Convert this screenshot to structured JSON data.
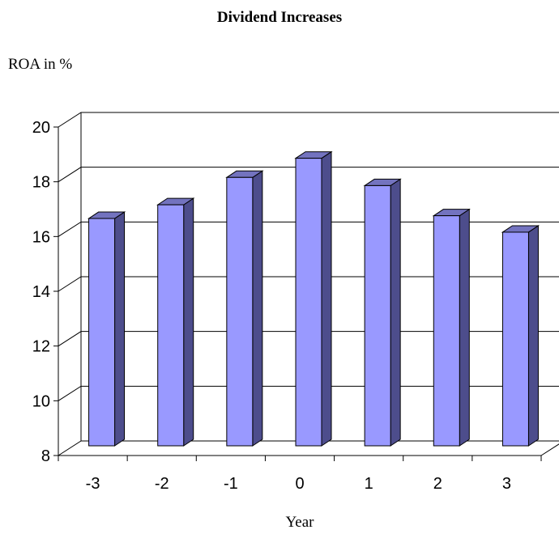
{
  "chart_data": {
    "type": "bar",
    "title": "Dividend Increases",
    "ylabel": "ROA in %",
    "xlabel": "Year",
    "categories": [
      "-3",
      "-2",
      "-1",
      "0",
      "1",
      "2",
      "3"
    ],
    "values": [
      16.6,
      17.1,
      18.1,
      18.8,
      17.8,
      16.7,
      16.1
    ],
    "ylim": [
      8,
      20
    ],
    "yticks": [
      8,
      10,
      12,
      14,
      16,
      18,
      20
    ],
    "grid": true,
    "legend": "none",
    "colors": {
      "front": "#9999ff",
      "side": "#4d4d8c",
      "top": "#7373bf",
      "edge": "#000000"
    }
  }
}
